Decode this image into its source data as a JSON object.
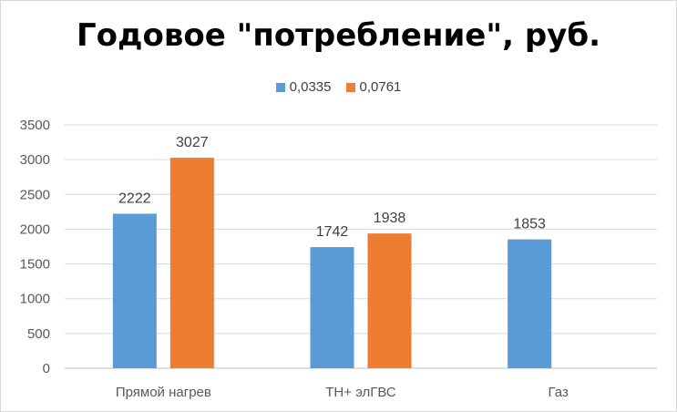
{
  "chart_data": {
    "type": "bar",
    "title": "Годовое \"потребление\", руб.",
    "categories": [
      "Прямой нагрев",
      "ТН+ элГВС",
      "Газ"
    ],
    "series": [
      {
        "name": "0,0335",
        "color": "#5b9bd5",
        "values": [
          2222,
          1742,
          1853
        ],
        "labels": [
          "2222",
          "1742",
          "1853"
        ]
      },
      {
        "name": "0,0761",
        "color": "#ed7d31",
        "values": [
          3027,
          1938,
          null
        ],
        "labels": [
          "3027",
          "1938",
          ""
        ]
      }
    ],
    "y_ticks": [
      "0",
      "500",
      "1000",
      "1500",
      "2000",
      "2500",
      "3000",
      "3500"
    ],
    "ylim": [
      0,
      3500
    ],
    "grid": true,
    "legend_position": "top"
  }
}
